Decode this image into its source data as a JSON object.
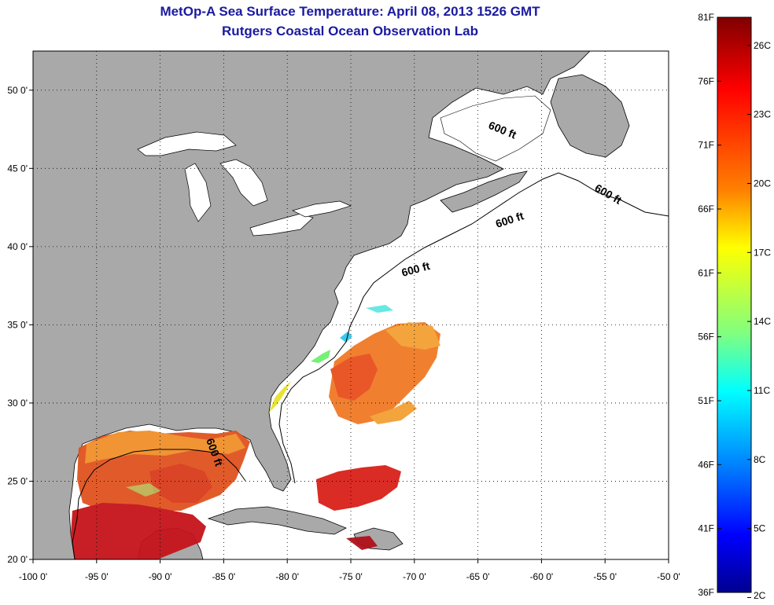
{
  "title": "MetOp-A Sea Surface Temperature:  April 08, 2013 1526 GMT",
  "subtitle": "Rutgers Coastal Ocean Observation Lab",
  "map": {
    "lon_labels": [
      "-100 0'",
      "-95 0'",
      "-90 0'",
      "-85 0'",
      "-80 0'",
      "-75 0'",
      "-70 0'",
      "-65 0'",
      "-60 0'",
      "-55 0'",
      "-50 0'"
    ],
    "lon_values": [
      -100,
      -95,
      -90,
      -85,
      -80,
      -75,
      -70,
      -65,
      -60,
      -55,
      -50
    ],
    "lat_labels": [
      "50 0'",
      "45 0'",
      "40 0'",
      "35 0'",
      "30 0'",
      "25 0'",
      "20 0'"
    ],
    "lat_values": [
      50,
      45,
      40,
      35,
      30,
      25,
      20
    ],
    "lon_range": [
      -100,
      -50
    ],
    "lat_range": [
      20,
      52.5
    ],
    "contour_labels": [
      "600 ft",
      "600 ft",
      "600 ft",
      "600 ft",
      "600 ft"
    ],
    "colors": {
      "land": "#a9a9a9",
      "ocean": "#ffffff",
      "frame": "#000000"
    }
  },
  "colorbar": {
    "f_labels": [
      "81F",
      "76F",
      "71F",
      "66F",
      "61F",
      "56F",
      "51F",
      "46F",
      "41F",
      "36F"
    ],
    "f_values": [
      81,
      76,
      71,
      66,
      61,
      56,
      51,
      46,
      41,
      36
    ],
    "c_labels": [
      "26C",
      "23C",
      "20C",
      "17C",
      "14C",
      "11C",
      "8C",
      "5C",
      "2C"
    ],
    "c_values": [
      26,
      23,
      20,
      17,
      14,
      11,
      8,
      5,
      2
    ],
    "range_f": [
      36,
      81
    ],
    "colors": [
      "#7f0000",
      "#ff0000",
      "#ff8000",
      "#ffff00",
      "#80ff80",
      "#00ffff",
      "#0080ff",
      "#0000ff",
      "#00008f"
    ]
  }
}
